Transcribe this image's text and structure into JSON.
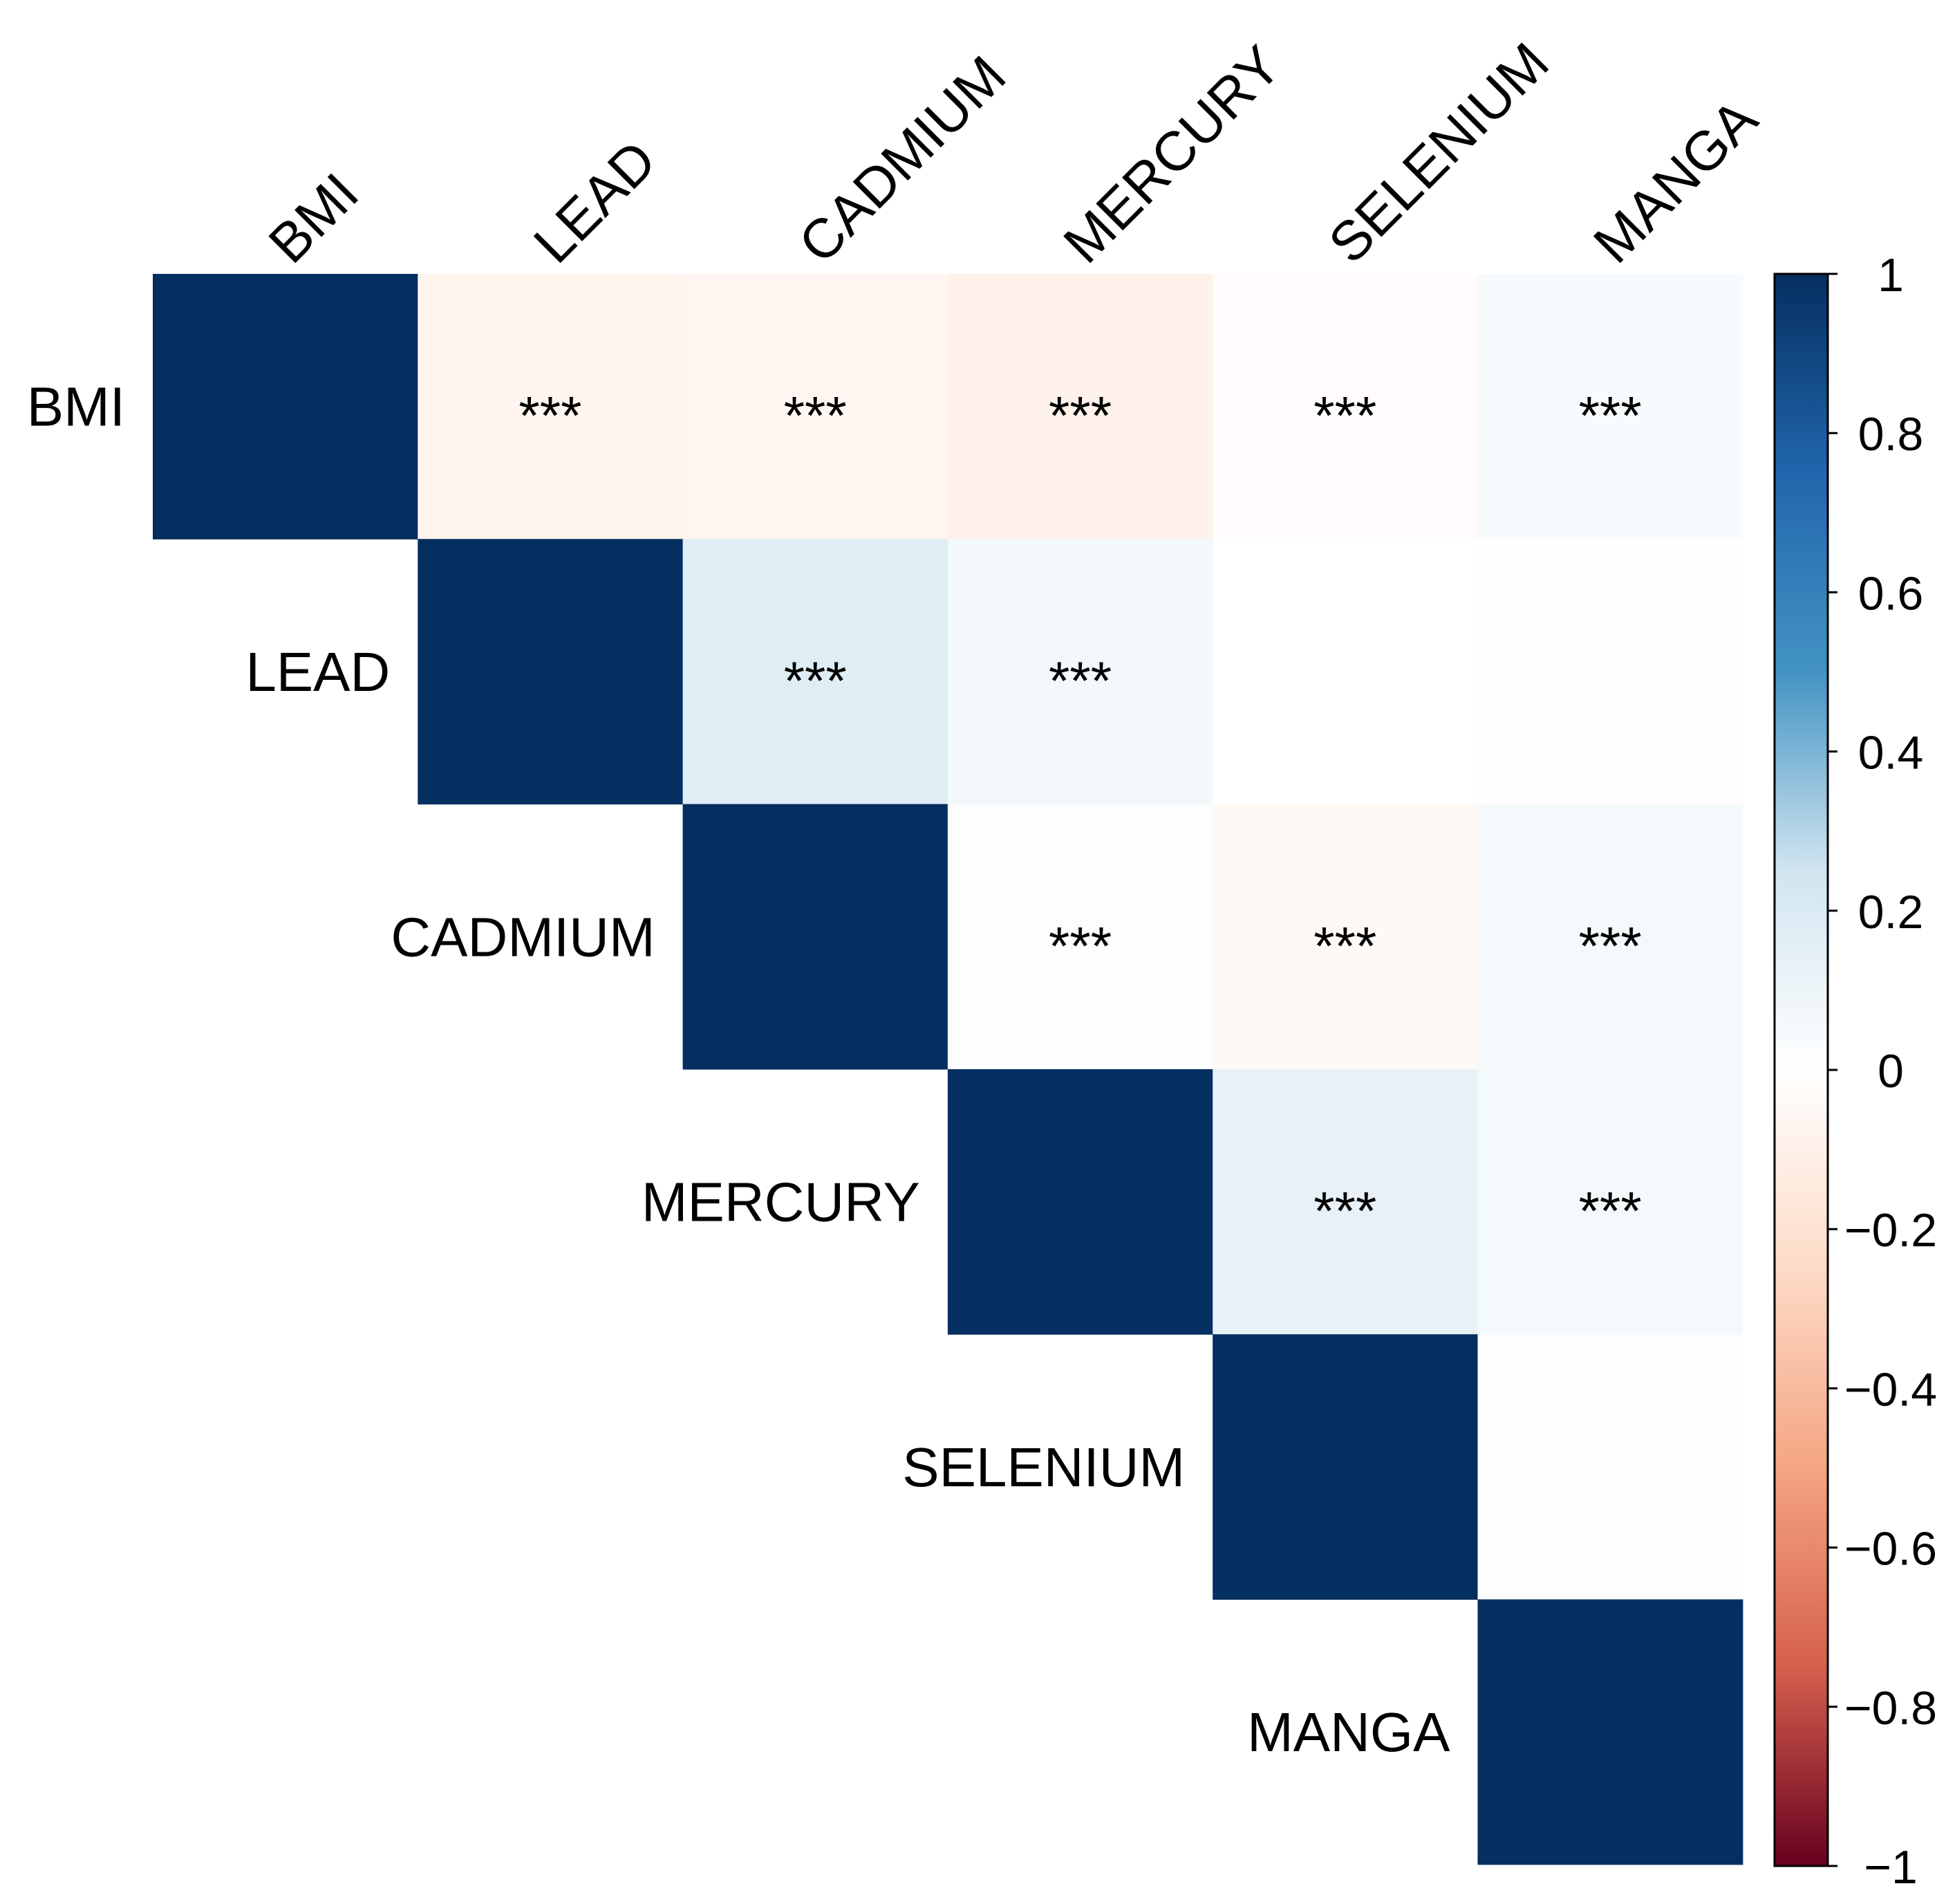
{
  "chart_data": {
    "type": "heatmap",
    "layout": "upper-triangle",
    "variables": [
      "BMI",
      "LEAD",
      "CADMIUM",
      "MERCURY",
      "SELENIUM",
      "MANGA"
    ],
    "matrix": [
      [
        1.0,
        -0.07,
        -0.06,
        -0.09,
        -0.02,
        0.04
      ],
      [
        -0.07,
        1.0,
        0.17,
        0.07,
        0.0,
        -0.01
      ],
      [
        -0.06,
        0.17,
        1.0,
        0.02,
        -0.04,
        0.06
      ],
      [
        -0.09,
        0.07,
        0.02,
        1.0,
        0.13,
        0.06
      ],
      [
        -0.02,
        0.0,
        -0.04,
        0.13,
        1.0,
        0.02
      ],
      [
        0.04,
        -0.01,
        0.06,
        0.06,
        0.02,
        1.0
      ]
    ],
    "significance_mark": "***",
    "significant_pairs": [
      [
        "BMI",
        "LEAD"
      ],
      [
        "BMI",
        "CADMIUM"
      ],
      [
        "BMI",
        "MERCURY"
      ],
      [
        "BMI",
        "SELENIUM"
      ],
      [
        "BMI",
        "MANGA"
      ],
      [
        "LEAD",
        "CADMIUM"
      ],
      [
        "LEAD",
        "MERCURY"
      ],
      [
        "CADMIUM",
        "MERCURY"
      ],
      [
        "CADMIUM",
        "SELENIUM"
      ],
      [
        "CADMIUM",
        "MANGA"
      ],
      [
        "MERCURY",
        "SELENIUM"
      ],
      [
        "MERCURY",
        "MANGA"
      ]
    ],
    "colorbar": {
      "range": [
        -1,
        1
      ],
      "ticks": [
        "1",
        "0.8",
        "0.6",
        "0.4",
        "0.2",
        "0",
        "−0.2",
        "−0.4",
        "−0.6",
        "−0.8",
        "−1"
      ],
      "tick_values": [
        1,
        0.8,
        0.6,
        0.4,
        0.2,
        0,
        -0.2,
        -0.4,
        -0.6,
        -0.8,
        -1
      ],
      "colormap_stops": [
        {
          "v": -1.0,
          "color": "#67001f"
        },
        {
          "v": -0.75,
          "color": "#d6604d"
        },
        {
          "v": -0.5,
          "color": "#f4a582"
        },
        {
          "v": -0.25,
          "color": "#fddbc7"
        },
        {
          "v": 0.0,
          "color": "#ffffff"
        },
        {
          "v": 0.25,
          "color": "#d1e5f0"
        },
        {
          "v": 0.5,
          "color": "#4393c3"
        },
        {
          "v": 0.75,
          "color": "#2166ac"
        },
        {
          "v": 1.0,
          "color": "#053061"
        }
      ],
      "diagonal_color": "#052f60"
    },
    "grid": false,
    "legend_position": "right"
  }
}
